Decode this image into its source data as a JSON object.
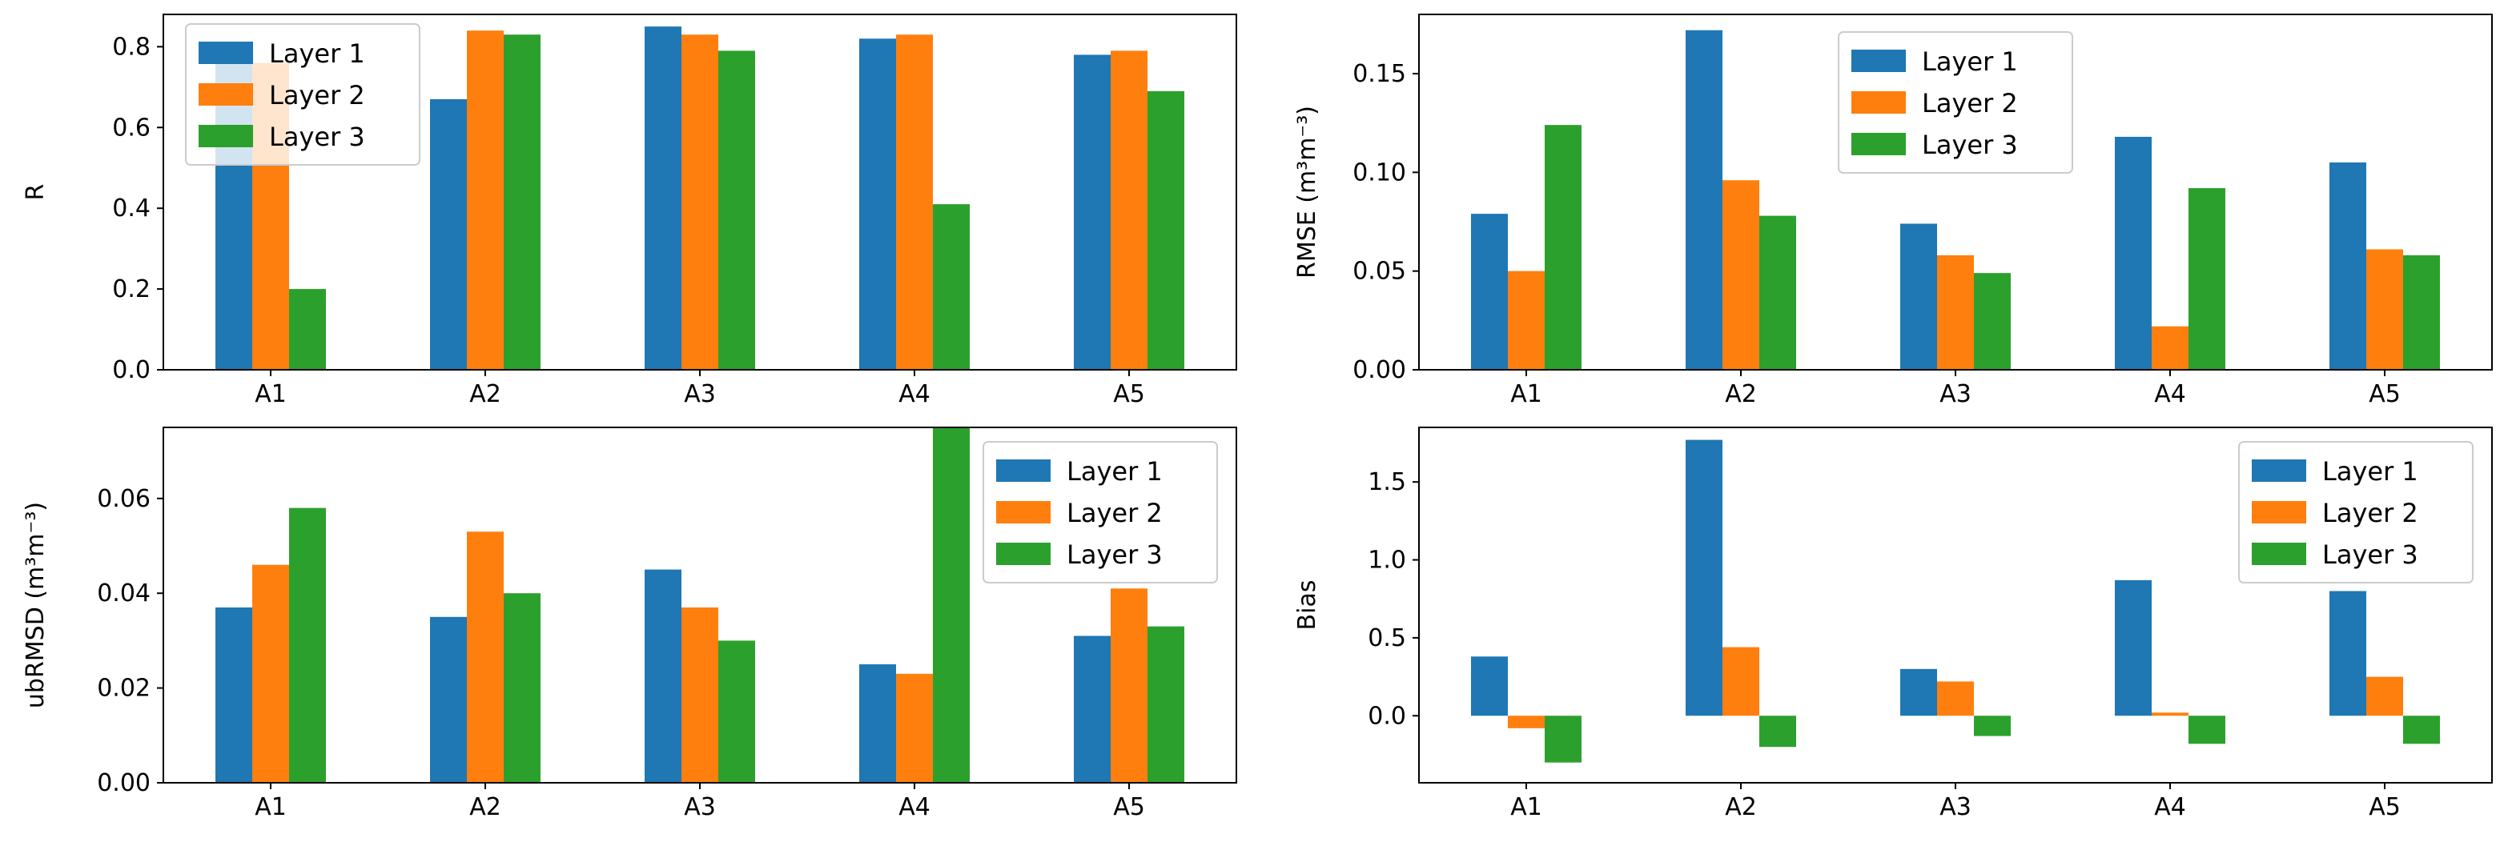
{
  "colors": {
    "layer1": "#1f77b4",
    "layer2": "#ff7f0e",
    "layer3": "#2ca02c",
    "axes": "#000000",
    "legend_border": "#cccccc"
  },
  "chart_data": [
    {
      "type": "bar",
      "title": "",
      "xlabel": "",
      "ylabel": "R",
      "ylabel_unit": "",
      "categories": [
        "A1",
        "A2",
        "A3",
        "A4",
        "A5"
      ],
      "series": [
        {
          "name": "Layer 1",
          "values": [
            0.76,
            0.67,
            0.85,
            0.82,
            0.78
          ]
        },
        {
          "name": "Layer 2",
          "values": [
            0.76,
            0.84,
            0.83,
            0.83,
            0.79
          ]
        },
        {
          "name": "Layer 3",
          "values": [
            0.2,
            0.83,
            0.79,
            0.41,
            0.69
          ]
        }
      ],
      "ylim": [
        0,
        0.88
      ],
      "yticks": [
        0.0,
        0.2,
        0.4,
        0.6,
        0.8
      ],
      "ytick_labels": [
        "0.0",
        "0.2",
        "0.4",
        "0.6",
        "0.8"
      ],
      "legend": {
        "placement": "top-left",
        "entries": [
          "Layer 1",
          "Layer 2",
          "Layer 3"
        ]
      }
    },
    {
      "type": "bar",
      "title": "",
      "xlabel": "",
      "ylabel": "RMSE",
      "ylabel_unit": "(m³m⁻³)",
      "categories": [
        "A1",
        "A2",
        "A3",
        "A4",
        "A5"
      ],
      "series": [
        {
          "name": "Layer 1",
          "values": [
            0.079,
            0.172,
            0.074,
            0.118,
            0.105
          ]
        },
        {
          "name": "Layer 2",
          "values": [
            0.05,
            0.096,
            0.058,
            0.022,
            0.061
          ]
        },
        {
          "name": "Layer 3",
          "values": [
            0.124,
            0.078,
            0.049,
            0.092,
            0.058
          ]
        }
      ],
      "ylim": [
        0,
        0.18
      ],
      "yticks": [
        0.0,
        0.05,
        0.1,
        0.15
      ],
      "ytick_labels": [
        "0.00",
        "0.05",
        "0.10",
        "0.15"
      ],
      "legend": {
        "placement": "top-center",
        "entries": [
          "Layer 1",
          "Layer 2",
          "Layer 3"
        ]
      }
    },
    {
      "type": "bar",
      "title": "",
      "xlabel": "",
      "ylabel": "ubRMSD",
      "ylabel_unit": "(m³m⁻³)",
      "categories": [
        "A1",
        "A2",
        "A3",
        "A4",
        "A5"
      ],
      "series": [
        {
          "name": "Layer 1",
          "values": [
            0.037,
            0.035,
            0.045,
            0.025,
            0.031
          ]
        },
        {
          "name": "Layer 2",
          "values": [
            0.046,
            0.053,
            0.037,
            0.023,
            0.041
          ]
        },
        {
          "name": "Layer 3",
          "values": [
            0.058,
            0.04,
            0.03,
            0.075,
            0.033
          ]
        }
      ],
      "ylim": [
        0,
        0.075
      ],
      "yticks": [
        0.0,
        0.02,
        0.04,
        0.06
      ],
      "ytick_labels": [
        "0.00",
        "0.02",
        "0.04",
        "0.06"
      ],
      "legend": {
        "placement": "top-right",
        "entries": [
          "Layer 1",
          "Layer 2",
          "Layer 3"
        ]
      }
    },
    {
      "type": "bar",
      "title": "",
      "xlabel": "",
      "ylabel": "Bias",
      "ylabel_unit": "",
      "categories": [
        "A1",
        "A2",
        "A3",
        "A4",
        "A5"
      ],
      "series": [
        {
          "name": "Layer 1",
          "values": [
            0.38,
            1.77,
            0.3,
            0.87,
            0.8
          ]
        },
        {
          "name": "Layer 2",
          "values": [
            -0.08,
            0.44,
            0.22,
            0.02,
            0.25
          ]
        },
        {
          "name": "Layer 3",
          "values": [
            -0.3,
            -0.2,
            -0.13,
            -0.18,
            -0.18
          ]
        }
      ],
      "ylim": [
        -0.43,
        1.85
      ],
      "yticks": [
        0.0,
        0.5,
        1.0,
        1.5
      ],
      "ytick_labels": [
        "0.0",
        "0.5",
        "1.0",
        "1.5"
      ],
      "legend": {
        "placement": "top-right",
        "entries": [
          "Layer 1",
          "Layer 2",
          "Layer 3"
        ]
      }
    }
  ]
}
